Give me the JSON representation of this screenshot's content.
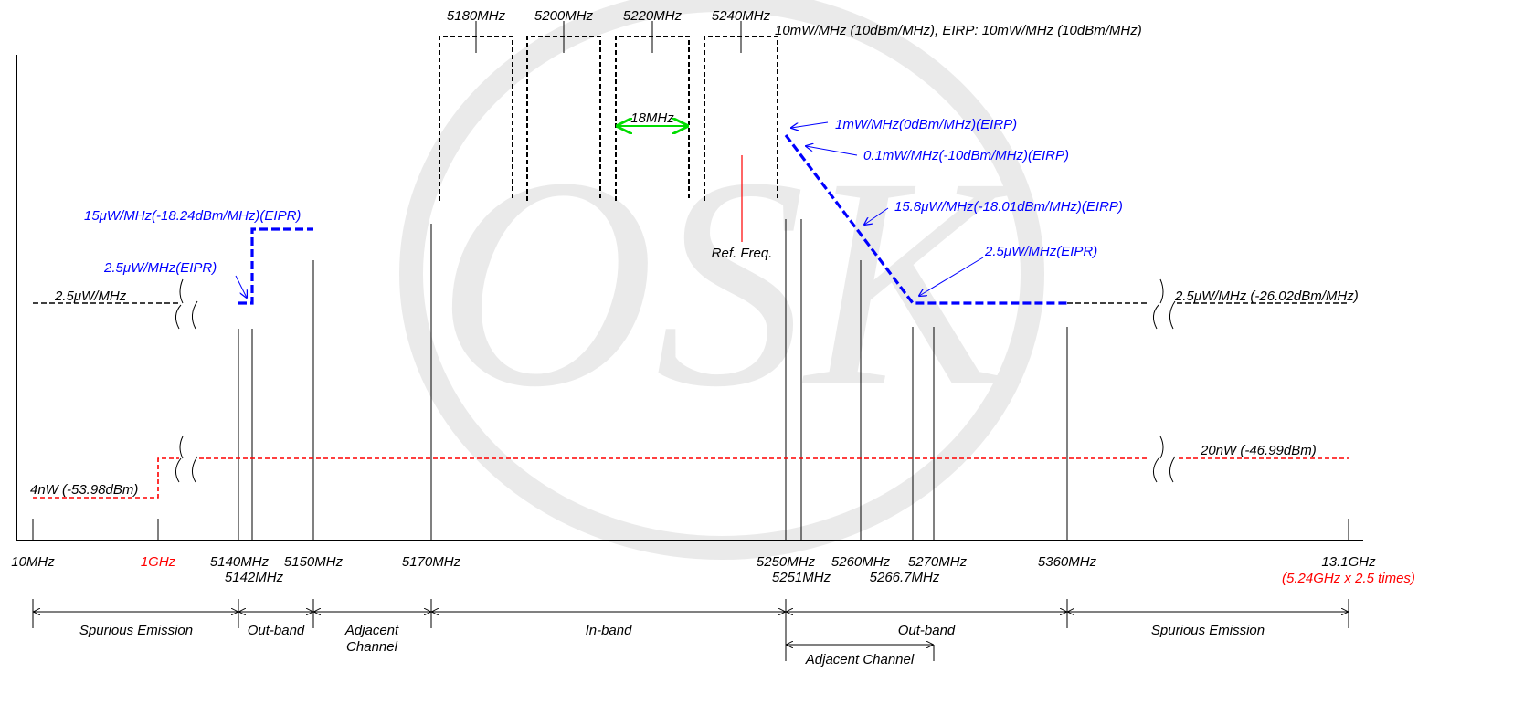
{
  "colors": {
    "black": "#000000",
    "blue": "#0000ff",
    "red": "#ff0000",
    "green": "#00dd00",
    "watermark": "#d9d9d9"
  },
  "watermark_text": "OSK",
  "channels": [
    {
      "label": "5180MHz"
    },
    {
      "label": "5200MHz"
    },
    {
      "label": "5220MHz"
    },
    {
      "label": "5240MHz"
    }
  ],
  "annotations": {
    "channel_limit": "10mW/MHz (10dBm/MHz), EIRP: 10mW/MHz (10dBm/MHz)",
    "bandwidth": "18MHz",
    "ref_freq": "Ref. Freq.",
    "left_blue_upper": "15μW/MHz(-18.24dBm/MHz)(EIPR)",
    "left_blue_lower": "2.5μW/MHz(EIPR)",
    "left_black": "2.5μW/MHz",
    "right_blue_1": "1mW/MHz(0dBm/MHz)(EIRP)",
    "right_blue_2": "0.1mW/MHz(-10dBm/MHz)(EIRP)",
    "right_blue_3": "15.8μW/MHz(-18.01dBm/MHz)(EIRP)",
    "right_blue_4": "2.5μW/MHz(EIPR)",
    "right_black": "2.5μW/MHz (-26.02dBm/MHz)",
    "left_red": "4nW (-53.98dBm)",
    "right_red": "20nW (-46.99dBm)"
  },
  "axis_labels": [
    {
      "text": "10MHz",
      "color": "black"
    },
    {
      "text": "1GHz",
      "color": "red"
    },
    {
      "text": "5140MHz",
      "color": "black"
    },
    {
      "text": "5142MHz",
      "color": "black"
    },
    {
      "text": "5150MHz",
      "color": "black"
    },
    {
      "text": "5170MHz",
      "color": "black"
    },
    {
      "text": "5250MHz",
      "color": "black"
    },
    {
      "text": "5251MHz",
      "color": "black"
    },
    {
      "text": "5260MHz",
      "color": "black"
    },
    {
      "text": "5266.7MHz",
      "color": "black"
    },
    {
      "text": "5270MHz",
      "color": "black"
    },
    {
      "text": "5360MHz",
      "color": "black"
    },
    {
      "text": "13.1GHz",
      "color": "black"
    },
    {
      "text": "(5.24GHz x 2.5 times)",
      "color": "red"
    }
  ],
  "bands": [
    {
      "label": "Spurious Emission"
    },
    {
      "label": "Out-band"
    },
    {
      "label": "Adjacent Channel"
    },
    {
      "label": "In-band"
    },
    {
      "label": "Out-band"
    },
    {
      "label": "Spurious Emission"
    },
    {
      "label": "Adjacent Channel"
    }
  ]
}
